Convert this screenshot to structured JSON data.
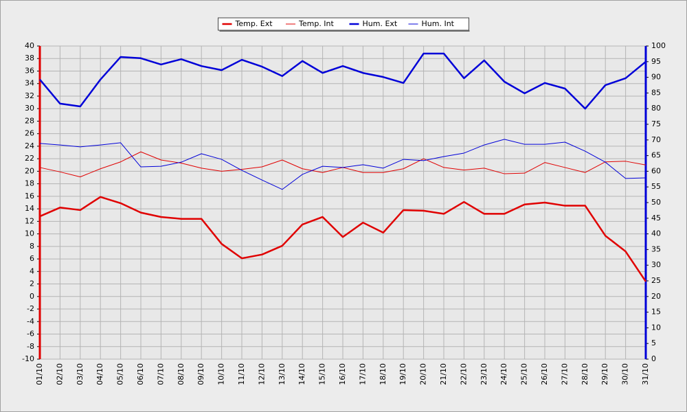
{
  "chart_data": {
    "type": "line",
    "categories": [
      "01/10",
      "02/10",
      "03/10",
      "04/10",
      "05/10",
      "06/10",
      "07/10",
      "08/10",
      "09/10",
      "10/10",
      "11/10",
      "12/10",
      "13/10",
      "14/10",
      "15/10",
      "16/10",
      "17/10",
      "18/10",
      "19/10",
      "20/10",
      "21/10",
      "22/10",
      "23/10",
      "24/10",
      "25/10",
      "26/10",
      "27/10",
      "28/10",
      "29/10",
      "30/10",
      "31/10"
    ],
    "series": [
      {
        "name": "Temp. Ext",
        "color": "#e00000",
        "linewidth": 2.5,
        "values": [
          12.8,
          14.2,
          13.8,
          15.9,
          14.9,
          13.4,
          12.7,
          12.4,
          12.4,
          8.4,
          6.1,
          6.7,
          8.1,
          11.5,
          12.7,
          9.5,
          11.8,
          10.2,
          13.8,
          13.7,
          13.2,
          15.1,
          13.2,
          13.2,
          14.7,
          15.0,
          14.5,
          14.5,
          9.7,
          7.2,
          2.4
        ]
      },
      {
        "name": "Temp. Int",
        "color": "#e00000",
        "linewidth": 1,
        "values": [
          20.6,
          19.9,
          19.1,
          20.4,
          21.5,
          23.1,
          21.8,
          21.3,
          20.5,
          20.0,
          20.3,
          20.7,
          21.8,
          20.4,
          19.8,
          20.6,
          19.8,
          19.8,
          20.4,
          22.0,
          20.6,
          20.2,
          20.5,
          19.6,
          19.7,
          21.4,
          20.6,
          19.8,
          21.5,
          21.6,
          21.0
        ]
      },
      {
        "name": "Hum. Ext",
        "color": "#0000d8",
        "linewidth": 2.5,
        "axis": "y2",
        "values": [
          89.3,
          81.6,
          80.7,
          89.3,
          96.5,
          96.1,
          94.1,
          95.8,
          93.6,
          92.3,
          95.6,
          93.4,
          90.4,
          95.2,
          91.4,
          93.6,
          91.4,
          90.1,
          88.2,
          97.6,
          97.6,
          89.7,
          95.4,
          88.6,
          84.9,
          88.2,
          86.4,
          80.0,
          87.5,
          89.7,
          95.0
        ]
      },
      {
        "name": "Hum. Int",
        "color": "#0000d8",
        "linewidth": 1,
        "axis": "y2",
        "values": [
          68.9,
          68.4,
          67.8,
          68.4,
          69.1,
          61.4,
          61.6,
          62.9,
          65.6,
          63.8,
          60.3,
          57.2,
          54.2,
          59.0,
          61.6,
          61.2,
          62.1,
          61.0,
          63.8,
          63.4,
          64.7,
          65.8,
          68.4,
          70.2,
          68.6,
          68.6,
          69.3,
          66.4,
          62.9,
          57.7,
          57.9
        ]
      }
    ],
    "ylim": [
      -10,
      40
    ],
    "yticks": [
      -10,
      -8,
      -6,
      -4,
      -2,
      0,
      2,
      4,
      6,
      8,
      10,
      12,
      14,
      16,
      18,
      20,
      22,
      24,
      26,
      28,
      30,
      32,
      34,
      36,
      38,
      40
    ],
    "y2lim": [
      0,
      100
    ],
    "y2ticks": [
      0,
      5,
      10,
      15,
      20,
      25,
      30,
      35,
      40,
      45,
      50,
      55,
      60,
      65,
      70,
      75,
      80,
      85,
      90,
      95,
      100
    ],
    "grid": true,
    "legend": "top"
  }
}
